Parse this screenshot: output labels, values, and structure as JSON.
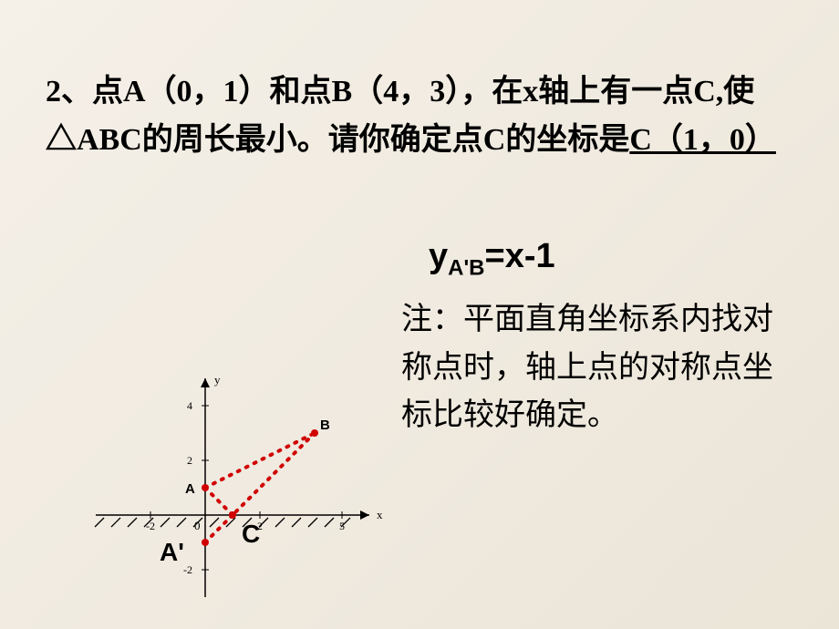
{
  "problem": {
    "prefix": "      2、点A（0，1）和点B（4，3），在x轴上有一点C,使△ABC的周长最小。请你确定点C的坐标是",
    "answer": "C（1，0）"
  },
  "equation": {
    "lhs_var": "y",
    "lhs_sub": "A'B",
    "rhs": "=x-1"
  },
  "note": "注：平面直角坐标系内找对称点时，轴上点的对称点坐标比较好确定。",
  "graph": {
    "origin_x": 140,
    "origin_y": 285,
    "unit": 30,
    "x_range": [
      -4,
      6
    ],
    "y_range": [
      -3,
      5
    ],
    "axis_color": "#000000",
    "grid_visible": false,
    "hatch_color": "#000000",
    "dotted_line_color": "#d00000",
    "dotted_line_width": 4,
    "dot_radius": 4,
    "point_color": "#d00000",
    "points": {
      "A": {
        "x": 0,
        "y": 1,
        "label": "A"
      },
      "B": {
        "x": 4,
        "y": 3,
        "label": "B"
      },
      "C": {
        "x": 1,
        "y": 0,
        "label": "C"
      },
      "Ap": {
        "x": 0,
        "y": -1,
        "label": "A'"
      }
    },
    "segments": [
      {
        "from": "A",
        "to": "B"
      },
      {
        "from": "A",
        "to": "C"
      },
      {
        "from": "B",
        "to": "C"
      },
      {
        "from": "Ap",
        "to": "C"
      }
    ],
    "axis_labels": {
      "x": "x",
      "y": "y",
      "origin": "0"
    },
    "y_ticks": [
      2,
      4,
      -2
    ],
    "x_ticks": [
      2,
      5,
      -2
    ]
  }
}
